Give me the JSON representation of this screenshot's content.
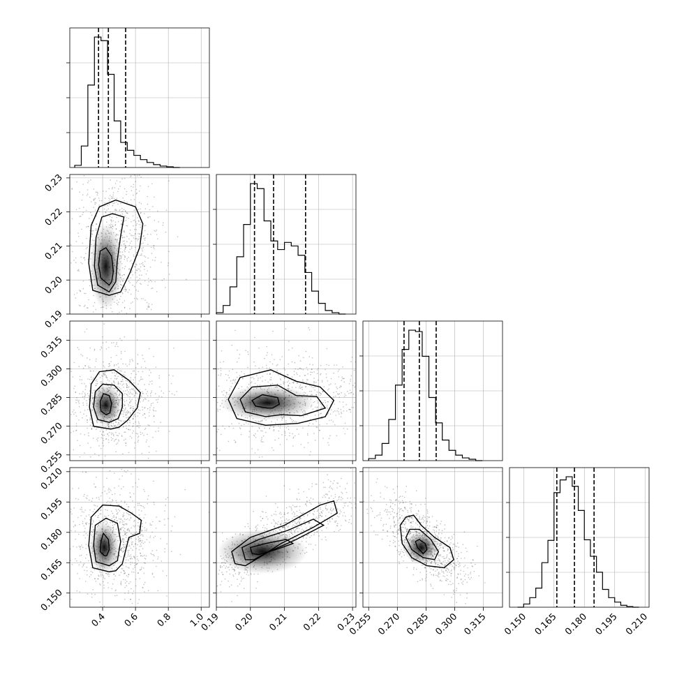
{
  "chart_data": {
    "type": "scatter",
    "subtype": "corner",
    "title": "",
    "parameters": [
      {
        "index": 0,
        "label": "",
        "range": [
          0.2,
          1.05
        ],
        "ticks": [
          0.4,
          0.6,
          0.8,
          1.0
        ],
        "tick_labels": [
          "0.4",
          "0.6",
          "0.8",
          "1.0"
        ]
      },
      {
        "index": 1,
        "label": "",
        "range": [
          0.19,
          0.231
        ],
        "ticks": [
          0.19,
          0.2,
          0.21,
          0.22,
          0.23
        ],
        "tick_labels": [
          "0.19",
          "0.20",
          "0.21",
          "0.22",
          "0.23"
        ]
      },
      {
        "index": 2,
        "label": "",
        "range": [
          0.252,
          0.325
        ],
        "ticks": [
          0.255,
          0.27,
          0.285,
          0.3,
          0.315
        ],
        "tick_labels": [
          "0.255",
          "0.270",
          "0.285",
          "0.300",
          "0.315"
        ]
      },
      {
        "index": 3,
        "label": "",
        "range": [
          0.143,
          0.212
        ],
        "ticks": [
          0.15,
          0.165,
          0.18,
          0.195,
          0.21
        ],
        "tick_labels": [
          "0.150",
          "0.165",
          "0.180",
          "0.195",
          "0.210"
        ]
      }
    ],
    "histograms": [
      {
        "param": 0,
        "bins": [
          0.23,
          0.27,
          0.31,
          0.35,
          0.39,
          0.43,
          0.47,
          0.51,
          0.55,
          0.59,
          0.63,
          0.67,
          0.71,
          0.75,
          0.79,
          0.83,
          0.87
        ],
        "counts": [
          3,
          30,
          115,
          182,
          177,
          130,
          65,
          35,
          24,
          17,
          11,
          7,
          4,
          2,
          1,
          0
        ],
        "quantiles": [
          0.375,
          0.435,
          0.54
        ]
      },
      {
        "param": 1,
        "bins": [
          0.19,
          0.192,
          0.194,
          0.196,
          0.198,
          0.2,
          0.202,
          0.204,
          0.206,
          0.208,
          0.21,
          0.212,
          0.214,
          0.216,
          0.218,
          0.22,
          0.222,
          0.224,
          0.226,
          0.228
        ],
        "counts": [
          2,
          12,
          38,
          80,
          125,
          182,
          175,
          130,
          102,
          90,
          100,
          95,
          82,
          58,
          32,
          15,
          5,
          2,
          0
        ],
        "quantiles": [
          0.2012,
          0.2068,
          0.2162
        ]
      },
      {
        "param": 2,
        "bins": [
          0.255,
          0.2585,
          0.262,
          0.2655,
          0.269,
          0.2725,
          0.276,
          0.2795,
          0.283,
          0.2865,
          0.29,
          0.2935,
          0.297,
          0.3005,
          0.304,
          0.3075,
          0.311,
          0.3145
        ],
        "counts": [
          3,
          8,
          25,
          60,
          110,
          162,
          190,
          188,
          152,
          92,
          55,
          30,
          15,
          8,
          4,
          2,
          0
        ],
        "quantiles": [
          0.2735,
          0.2815,
          0.2903
        ]
      },
      {
        "param": 3,
        "bins": [
          0.147,
          0.15,
          0.153,
          0.156,
          0.159,
          0.162,
          0.165,
          0.168,
          0.171,
          0.174,
          0.177,
          0.18,
          0.183,
          0.186,
          0.189,
          0.192,
          0.195,
          0.198,
          0.201,
          0.204,
          0.207
        ],
        "counts": [
          0,
          5,
          15,
          30,
          70,
          105,
          180,
          200,
          205,
          190,
          152,
          106,
          80,
          55,
          28,
          15,
          8,
          3,
          1,
          0
        ],
        "quantiles": [
          0.1664,
          0.1751,
          0.1848
        ]
      }
    ],
    "pairs": [
      {
        "x_param": 0,
        "y_param": 1,
        "peak": [
          0.42,
          0.204
        ],
        "contours": [
          [
            [
              0.44,
              0.1985
            ],
            [
              0.39,
              0.2005
            ],
            [
              0.375,
              0.2045
            ],
            [
              0.385,
              0.2085
            ],
            [
              0.42,
              0.2095
            ],
            [
              0.455,
              0.207
            ],
            [
              0.465,
              0.2025
            ],
            [
              0.455,
              0.1995
            ]
          ],
          [
            [
              0.44,
              0.1965
            ],
            [
              0.37,
              0.1985
            ],
            [
              0.35,
              0.204
            ],
            [
              0.36,
              0.2125
            ],
            [
              0.395,
              0.2185
            ],
            [
              0.46,
              0.2195
            ],
            [
              0.53,
              0.2185
            ],
            [
              0.51,
              0.213
            ],
            [
              0.49,
              0.206
            ],
            [
              0.48,
              0.1995
            ]
          ],
          [
            [
              0.44,
              0.1955
            ],
            [
              0.34,
              0.197
            ],
            [
              0.315,
              0.205
            ],
            [
              0.33,
              0.216
            ],
            [
              0.38,
              0.2215
            ],
            [
              0.48,
              0.2235
            ],
            [
              0.6,
              0.2215
            ],
            [
              0.645,
              0.2165
            ],
            [
              0.625,
              0.2095
            ],
            [
              0.565,
              0.202
            ],
            [
              0.51,
              0.1965
            ]
          ]
        ]
      },
      {
        "x_param": 0,
        "y_param": 2,
        "peak": [
          0.42,
          0.281
        ],
        "contours": [
          [
            [
              0.42,
              0.276
            ],
            [
              0.39,
              0.278
            ],
            [
              0.385,
              0.283
            ],
            [
              0.405,
              0.287
            ],
            [
              0.44,
              0.286
            ],
            [
              0.455,
              0.282
            ],
            [
              0.445,
              0.277
            ]
          ],
          [
            [
              0.44,
              0.272
            ],
            [
              0.37,
              0.2735
            ],
            [
              0.345,
              0.28
            ],
            [
              0.355,
              0.288
            ],
            [
              0.4,
              0.292
            ],
            [
              0.47,
              0.2915
            ],
            [
              0.52,
              0.287
            ],
            [
              0.52,
              0.28
            ],
            [
              0.495,
              0.274
            ]
          ],
          [
            [
              0.45,
              0.2685
            ],
            [
              0.345,
              0.27
            ],
            [
              0.32,
              0.28
            ],
            [
              0.33,
              0.292
            ],
            [
              0.38,
              0.2985
            ],
            [
              0.47,
              0.2995
            ],
            [
              0.56,
              0.294
            ],
            [
              0.63,
              0.2875
            ],
            [
              0.61,
              0.2795
            ],
            [
              0.55,
              0.273
            ],
            [
              0.5,
              0.2695
            ]
          ]
        ]
      },
      {
        "x_param": 1,
        "y_param": 2,
        "peak": [
          0.205,
          0.2822
        ],
        "contours": [
          [
            [
              0.205,
              0.2795
            ],
            [
              0.2015,
              0.2805
            ],
            [
              0.2005,
              0.2835
            ],
            [
              0.2035,
              0.2865
            ],
            [
              0.208,
              0.285
            ],
            [
              0.2085,
              0.2815
            ],
            [
              0.2065,
              0.2795
            ]
          ],
          [
            [
              0.2045,
              0.275
            ],
            [
              0.1985,
              0.2775
            ],
            [
              0.197,
              0.284
            ],
            [
              0.2005,
              0.2905
            ],
            [
              0.208,
              0.2915
            ],
            [
              0.2135,
              0.286
            ],
            [
              0.2195,
              0.2855
            ],
            [
              0.222,
              0.2795
            ],
            [
              0.215,
              0.2755
            ],
            [
              0.209,
              0.276
            ]
          ],
          [
            [
              0.2045,
              0.2705
            ],
            [
              0.196,
              0.274
            ],
            [
              0.1935,
              0.284
            ],
            [
              0.197,
              0.2955
            ],
            [
              0.206,
              0.2995
            ],
            [
              0.2135,
              0.2935
            ],
            [
              0.2205,
              0.2905
            ],
            [
              0.2245,
              0.2835
            ],
            [
              0.222,
              0.275
            ],
            [
              0.214,
              0.2715
            ]
          ]
        ]
      },
      {
        "x_param": 0,
        "y_param": 3,
        "peak": [
          0.41,
          0.1725
        ],
        "contours": [
          [
            [
              0.41,
              0.1685
            ],
            [
              0.385,
              0.1705
            ],
            [
              0.39,
              0.1755
            ],
            [
              0.405,
              0.1795
            ],
            [
              0.435,
              0.1765
            ],
            [
              0.44,
              0.1715
            ],
            [
              0.425,
              0.1685
            ]
          ],
          [
            [
              0.44,
              0.1635
            ],
            [
              0.36,
              0.1655
            ],
            [
              0.345,
              0.1735
            ],
            [
              0.355,
              0.1835
            ],
            [
              0.42,
              0.187
            ],
            [
              0.49,
              0.1845
            ],
            [
              0.51,
              0.1755
            ],
            [
              0.49,
              0.166
            ]
          ],
          [
            [
              0.44,
              0.1605
            ],
            [
              0.34,
              0.1625
            ],
            [
              0.315,
              0.1735
            ],
            [
              0.33,
              0.1875
            ],
            [
              0.4,
              0.1935
            ],
            [
              0.5,
              0.193
            ],
            [
              0.575,
              0.1895
            ],
            [
              0.635,
              0.186
            ],
            [
              0.625,
              0.1795
            ],
            [
              0.56,
              0.1775
            ],
            [
              0.52,
              0.1645
            ],
            [
              0.48,
              0.161
            ]
          ]
        ]
      },
      {
        "x_param": 1,
        "y_param": 3,
        "peak": [
          0.2035,
          0.1705
        ],
        "contours": [
          [
            [
              0.2005,
              0.1695
            ],
            [
              0.2,
              0.1725
            ],
            [
              0.2045,
              0.1745
            ],
            [
              0.2105,
              0.1765
            ],
            [
              0.2125,
              0.1745
            ],
            [
              0.2075,
              0.1715
            ],
            [
              0.2025,
              0.169
            ]
          ],
          [
            [
              0.1985,
              0.1665
            ],
            [
              0.1975,
              0.1725
            ],
            [
              0.2025,
              0.1765
            ],
            [
              0.211,
              0.181
            ],
            [
              0.2185,
              0.1865
            ],
            [
              0.2215,
              0.1835
            ],
            [
              0.2135,
              0.1765
            ],
            [
              0.2055,
              0.1705
            ],
            [
              0.201,
              0.1665
            ]
          ],
          [
            [
              0.1955,
              0.1645
            ],
            [
              0.1945,
              0.1705
            ],
            [
              0.2,
              0.1775
            ],
            [
              0.21,
              0.1835
            ],
            [
              0.2205,
              0.1935
            ],
            [
              0.2245,
              0.1955
            ],
            [
              0.2255,
              0.1895
            ],
            [
              0.2185,
              0.1825
            ],
            [
              0.209,
              0.1745
            ],
            [
              0.2025,
              0.1675
            ],
            [
              0.1985,
              0.1635
            ]
          ]
        ]
      },
      {
        "x_param": 2,
        "y_param": 3,
        "peak": [
          0.2825,
          0.1725
        ],
        "contours": [
          [
            [
              0.2795,
              0.1755
            ],
            [
              0.2805,
              0.1725
            ],
            [
              0.2835,
              0.1695
            ],
            [
              0.2855,
              0.1715
            ],
            [
              0.2845,
              0.1745
            ],
            [
              0.2815,
              0.1765
            ]
          ],
          [
            [
              0.2765,
              0.1815
            ],
            [
              0.2745,
              0.1775
            ],
            [
              0.2775,
              0.1715
            ],
            [
              0.2835,
              0.1675
            ],
            [
              0.2895,
              0.1665
            ],
            [
              0.2915,
              0.1705
            ],
            [
              0.2875,
              0.1765
            ],
            [
              0.2815,
              0.1815
            ]
          ],
          [
            [
              0.2745,
              0.1875
            ],
            [
              0.2715,
              0.1835
            ],
            [
              0.2725,
              0.1745
            ],
            [
              0.2775,
              0.1675
            ],
            [
              0.2855,
              0.1635
            ],
            [
              0.2945,
              0.1625
            ],
            [
              0.2995,
              0.1665
            ],
            [
              0.2975,
              0.1725
            ],
            [
              0.2895,
              0.1775
            ],
            [
              0.2825,
              0.1835
            ],
            [
              0.2785,
              0.1885
            ]
          ]
        ]
      }
    ]
  }
}
